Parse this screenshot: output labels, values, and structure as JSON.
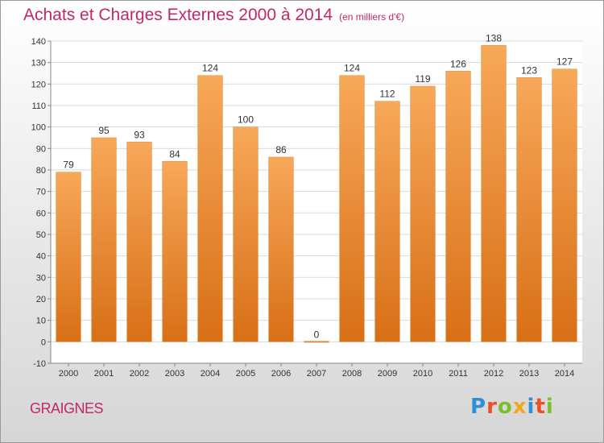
{
  "header": {
    "title": "Achats et Charges Externes 2000 à 2014",
    "subtitle": "(en milliers d'€)"
  },
  "location": "GRAIGNES",
  "logo": {
    "text": "Proxiti",
    "letter_colors": [
      "#2f8fd6",
      "#e8502a",
      "#7bbf2a",
      "#f0a91e",
      "#2f8fd6",
      "#e8502a",
      "#7bbf2a"
    ]
  },
  "colors": {
    "bar_light": "#f7a859",
    "bar_dark": "#d86f17",
    "title": "#c0286a",
    "grid": "#d9d9d9",
    "axis_text": "#333333"
  },
  "chart_data": {
    "type": "bar",
    "categories": [
      "2000",
      "2001",
      "2002",
      "2003",
      "2004",
      "2005",
      "2006",
      "2007",
      "2008",
      "2009",
      "2010",
      "2011",
      "2012",
      "2013",
      "2014"
    ],
    "values": [
      79,
      95,
      93,
      84,
      124,
      100,
      86,
      0,
      124,
      112,
      119,
      126,
      138,
      123,
      127
    ],
    "ylim": [
      -10,
      140
    ],
    "yticks": [
      -10,
      0,
      10,
      20,
      30,
      40,
      50,
      60,
      70,
      80,
      90,
      100,
      110,
      120,
      130,
      140
    ],
    "grid": true,
    "xlabel": "",
    "ylabel": ""
  }
}
